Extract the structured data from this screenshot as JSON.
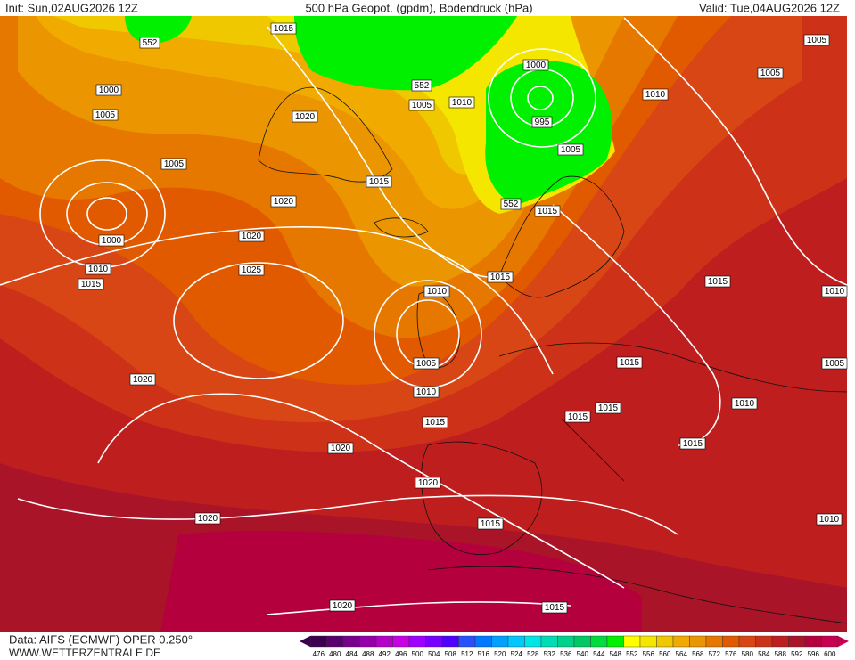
{
  "header": {
    "init": "Init: Sun,02AUG2026 12Z",
    "title": "500 hPa Geopot. (gpdm), Bodendruck (hPa)",
    "valid": "Valid: Tue,04AUG2026 12Z"
  },
  "isobar_labels": [
    "1015",
    "552",
    "1000",
    "1005",
    "1005",
    "1000",
    "1010",
    "1015",
    "1020",
    "1020",
    "1020",
    "1025",
    "1015",
    "1005",
    "552",
    "1010",
    "1000",
    "995",
    "1005",
    "1010",
    "1005",
    "1005",
    "552",
    "1015",
    "1015",
    "1010",
    "1005",
    "1010",
    "1015",
    "1015",
    "1010",
    "1005",
    "1015",
    "1015",
    "1015",
    "1010",
    "1015",
    "1020",
    "1020",
    "1020",
    "1020",
    "1015",
    "1010",
    "1020",
    "1015"
  ],
  "legend": {
    "labels": [
      "476",
      "480",
      "484",
      "488",
      "492",
      "496",
      "500",
      "504",
      "508",
      "512",
      "516",
      "520",
      "524",
      "528",
      "532",
      "536",
      "540",
      "544",
      "548",
      "552",
      "556",
      "560",
      "564",
      "568",
      "572",
      "576",
      "580",
      "584",
      "588",
      "592",
      "596",
      "600"
    ],
    "colors": [
      "#3c0050",
      "#5a006e",
      "#78008c",
      "#9600aa",
      "#b400c8",
      "#c800e6",
      "#a000ff",
      "#7800ff",
      "#5000ff",
      "#2850ff",
      "#0078ff",
      "#00a0ff",
      "#00c8ff",
      "#00e6e6",
      "#00dcb4",
      "#00d28c",
      "#00c864",
      "#00dc3c",
      "#00f000",
      "#ffff00",
      "#f5e600",
      "#f0c800",
      "#f0aa00",
      "#eb9600",
      "#e67800",
      "#e15a00",
      "#d74614",
      "#cd3219",
      "#be1e1e",
      "#aa1428",
      "#b4003c",
      "#c80050"
    ]
  },
  "footer": {
    "source": "Data: AIFS (ECMWF) OPER 0.250°",
    "website": "WWW.WETTERZENTRALE.DE"
  }
}
